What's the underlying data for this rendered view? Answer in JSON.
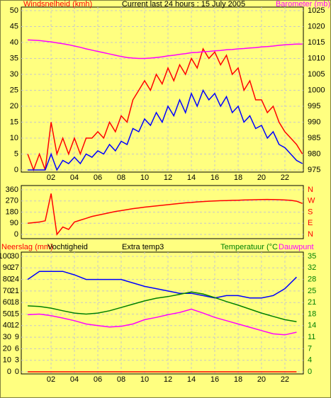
{
  "chart_data": [
    {
      "type": "line",
      "title": "Current last 24 hours : 15 July 2005",
      "y_label": "Windsnelheid (kmh)",
      "y_label_color": "#ff0000",
      "y2_label": "Barometer (mb)",
      "y2_label_color": "#ff00ff",
      "x": [
        0,
        0.5,
        1,
        1.5,
        2,
        2.5,
        3,
        3.5,
        4,
        4.5,
        5,
        5.5,
        6,
        6.5,
        7,
        7.5,
        8,
        8.5,
        9,
        9.5,
        10,
        10.5,
        11,
        11.5,
        12,
        12.5,
        13,
        13.5,
        14,
        14.5,
        15,
        15.5,
        16,
        16.5,
        17,
        17.5,
        18,
        18.5,
        19,
        19.5,
        20,
        20.5,
        21,
        21.5,
        22,
        22.5,
        23,
        23.5
      ],
      "xlim": [
        -0.55,
        23.58
      ],
      "xticks": [
        {
          "value": 2,
          "label": "02"
        },
        {
          "value": 4,
          "label": "04"
        },
        {
          "value": 6,
          "label": "06"
        },
        {
          "value": 8,
          "label": "08"
        },
        10,
        12,
        14,
        16,
        18,
        20,
        22
      ],
      "ylim": [
        0,
        50
      ],
      "yticks": [
        0,
        5,
        10,
        15,
        20,
        25,
        30,
        35,
        40,
        45,
        50
      ],
      "y2lim": [
        975,
        1025
      ],
      "y2ticks": [
        975,
        980,
        985,
        990,
        995,
        1000,
        1005,
        1010,
        1015,
        1020,
        1025
      ],
      "grid": true,
      "series": [
        {
          "color": "#ff0000",
          "values": [
            5,
            0,
            5,
            0,
            15,
            5,
            10,
            5,
            10,
            5,
            10,
            10,
            12,
            10,
            15,
            12,
            17,
            15,
            22,
            25,
            28,
            25,
            30,
            27,
            32,
            28,
            33,
            30,
            35,
            32,
            38,
            35,
            37,
            33,
            36,
            30,
            32,
            25,
            28,
            22,
            22,
            18,
            20,
            15,
            12,
            10,
            8,
            5
          ]
        },
        {
          "color": "#0000ff",
          "values": [
            0,
            0,
            0,
            0,
            5,
            0,
            3,
            2,
            4,
            2,
            5,
            4,
            6,
            5,
            8,
            6,
            9,
            8,
            13,
            12,
            16,
            14,
            18,
            15,
            20,
            17,
            22,
            18,
            24,
            20,
            25,
            22,
            24,
            20,
            23,
            18,
            20,
            15,
            17,
            13,
            14,
            10,
            12,
            8,
            7,
            5,
            3,
            2
          ]
        },
        {
          "color": "#ff00ff",
          "axis": "y2",
          "values": [
            1015.8,
            1015.7,
            1015.6,
            1015.4,
            1015.2,
            1014.9,
            1014.6,
            1014.3,
            1013.9,
            1013.5,
            1013.0,
            1012.6,
            1012.2,
            1011.8,
            1011.4,
            1011.0,
            1010.6,
            1010.3,
            1010.1,
            1010.0,
            1010.0,
            1010.1,
            1010.3,
            1010.5,
            1010.8,
            1011.0,
            1011.3,
            1011.5,
            1011.8,
            1011.9,
            1012.1,
            1012.2,
            1012.4,
            1012.5,
            1012.7,
            1012.8,
            1013.0,
            1013.1,
            1013.3,
            1013.4,
            1013.6,
            1013.7,
            1013.9,
            1014.1,
            1014.3,
            1014.4,
            1014.5,
            1014.5
          ]
        }
      ]
    },
    {
      "type": "line",
      "x": [
        0,
        0.5,
        1,
        1.5,
        2,
        2.5,
        3,
        3.5,
        4,
        4.5,
        5,
        5.5,
        6,
        6.5,
        7,
        7.5,
        8,
        8.5,
        9,
        9.5,
        10,
        10.5,
        11,
        11.5,
        12,
        12.5,
        13,
        13.5,
        14,
        14.5,
        15,
        15.5,
        16,
        16.5,
        17,
        17.5,
        18,
        18.5,
        19,
        19.5,
        20,
        20.5,
        21,
        21.5,
        22,
        22.5,
        23,
        23.5
      ],
      "xlim": [
        -0.55,
        23.58
      ],
      "ylim": [
        0,
        360
      ],
      "yticks": [
        0,
        90,
        180,
        270,
        360
      ],
      "y2lim": [
        0,
        360
      ],
      "y2ticks": [
        {
          "value": 360,
          "label": "N"
        },
        {
          "value": 270,
          "label": "W"
        },
        {
          "value": 180,
          "label": "S"
        },
        {
          "value": 90,
          "label": "E"
        },
        {
          "value": 0,
          "label": "N"
        }
      ],
      "y2_tick_color": "#ff0000",
      "grid": true,
      "series": [
        {
          "color": "#ff0000",
          "values": [
            90,
            95,
            100,
            110,
            330,
            0,
            60,
            40,
            100,
            115,
            130,
            145,
            155,
            165,
            175,
            185,
            192,
            200,
            208,
            214,
            220,
            225,
            230,
            235,
            240,
            245,
            250,
            255,
            258,
            262,
            265,
            268,
            270,
            272,
            273,
            275,
            276,
            278,
            279,
            280,
            281,
            282,
            281,
            280,
            278,
            275,
            268,
            250
          ]
        }
      ]
    },
    {
      "type": "line",
      "y3_label": "Extra temp3",
      "x": [
        0,
        1,
        2,
        3,
        4,
        5,
        6,
        7,
        8,
        9,
        10,
        11,
        12,
        13,
        14,
        15,
        16,
        17,
        18,
        19,
        20,
        21,
        22,
        23
      ],
      "xlim": [
        -0.55,
        23.58
      ],
      "xticks": [
        {
          "value": 2,
          "label": "02"
        },
        {
          "value": 4,
          "label": "04"
        },
        {
          "value": 6,
          "label": "06"
        },
        {
          "value": 8,
          "label": "08"
        },
        10,
        12,
        14,
        16,
        18,
        20,
        22
      ],
      "ylim": [
        0,
        100
      ],
      "yticks": [
        0,
        10,
        20,
        30,
        40,
        50,
        60,
        70,
        80,
        90,
        100
      ],
      "y3lim": [
        0,
        30
      ],
      "y3ticks": [
        0,
        3,
        6,
        9,
        12,
        15,
        18,
        21,
        24,
        27,
        30
      ],
      "y2lim": [
        0,
        35
      ],
      "y2ticks": [
        0,
        {
          "value": 3.5,
          "label": "4"
        },
        7,
        {
          "value": 10.5,
          "label": "11"
        },
        14,
        {
          "value": 17.5,
          "label": "18"
        },
        21,
        {
          "value": 24.5,
          "label": "25"
        },
        28,
        {
          "value": 31.5,
          "label": "32"
        },
        35
      ],
      "y2_tick_color": "#008000",
      "grid": true,
      "series": [
        {
          "name": "Neerslag (mm)",
          "color": "#ff0000",
          "values": [
            0,
            0,
            0,
            0,
            0,
            0,
            0,
            0,
            0,
            0,
            0,
            0,
            0,
            0,
            0,
            0,
            0,
            0,
            0,
            0,
            0,
            0,
            0,
            0
          ]
        },
        {
          "name": "Vochtigheid",
          "color": "#0000ff",
          "values": [
            80,
            87,
            87,
            87,
            84,
            80,
            80,
            80,
            80,
            77,
            74,
            72,
            70,
            68,
            68,
            66,
            64,
            66,
            66,
            64,
            64,
            66,
            72,
            82
          ]
        },
        {
          "name": "Temperatuur (°C",
          "color": "#008000",
          "axis": "y2",
          "values": [
            20,
            19.8,
            19.3,
            18.5,
            17.8,
            17.5,
            17.8,
            18.5,
            19.5,
            20.5,
            21.5,
            22.3,
            22.8,
            23.5,
            24.2,
            23.6,
            22.5,
            21.3,
            20.2,
            19.0,
            17.8,
            16.8,
            15.8,
            15.2
          ]
        },
        {
          "name": "Dauwpunt",
          "color": "#ff00ff",
          "axis": "y2",
          "values": [
            17.3,
            17.5,
            17,
            16.3,
            15.5,
            14.5,
            14,
            13.6,
            13.8,
            14.5,
            15.8,
            16.5,
            17.3,
            18.0,
            19.0,
            17.8,
            16.5,
            15.5,
            14.5,
            13.5,
            12.5,
            11.5,
            11.2,
            12.0
          ]
        }
      ]
    }
  ]
}
